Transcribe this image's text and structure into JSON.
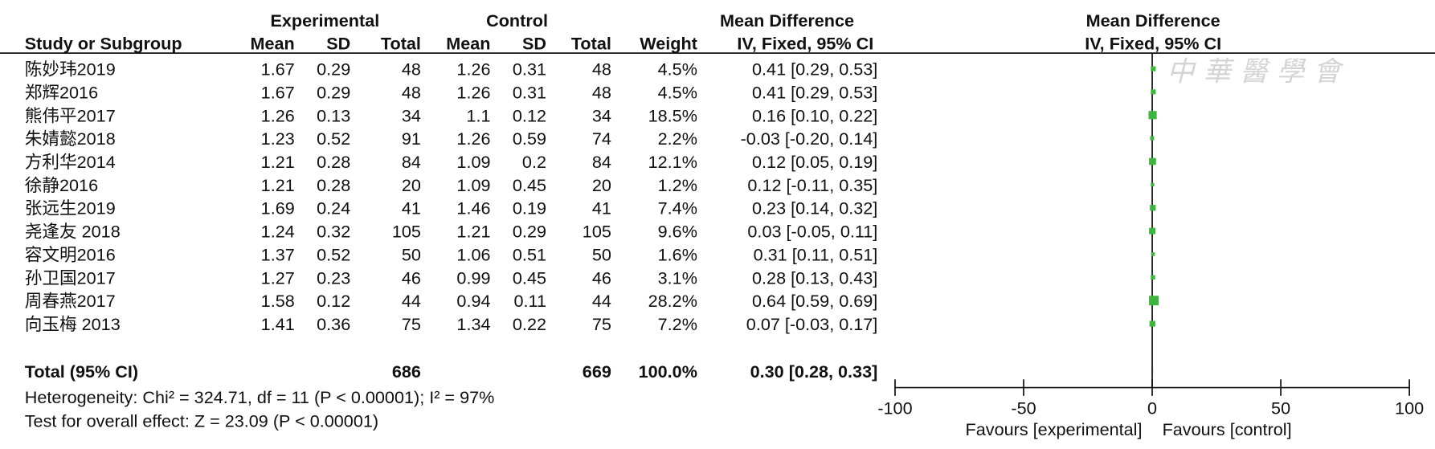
{
  "chart_data": {
    "type": "forest",
    "group_headers": [
      "Experimental",
      "Control",
      "Mean Difference",
      "Mean Difference"
    ],
    "columns": [
      "Study or Subgroup",
      "Mean",
      "SD",
      "Total",
      "Mean",
      "SD",
      "Total",
      "Weight",
      "IV, Fixed, 95% CI",
      "IV, Fixed, 95% CI"
    ],
    "studies": [
      {
        "name": "陈妙玮2019",
        "exp": [
          1.67,
          0.29,
          48
        ],
        "ctl": [
          1.26,
          0.31,
          48
        ],
        "weight": 4.5,
        "weight_label": "4.5%",
        "md": 0.41,
        "ci": [
          0.29,
          0.53
        ],
        "md_label": "0.41 [0.29, 0.53]"
      },
      {
        "name": "郑辉2016",
        "exp": [
          1.67,
          0.29,
          48
        ],
        "ctl": [
          1.26,
          0.31,
          48
        ],
        "weight": 4.5,
        "weight_label": "4.5%",
        "md": 0.41,
        "ci": [
          0.29,
          0.53
        ],
        "md_label": "0.41 [0.29, 0.53]"
      },
      {
        "name": "熊伟平2017",
        "exp": [
          1.26,
          0.13,
          34
        ],
        "ctl": [
          1.1,
          0.12,
          34
        ],
        "weight": 18.5,
        "weight_label": "18.5%",
        "md": 0.16,
        "ci": [
          0.1,
          0.22
        ],
        "md_label": "0.16 [0.10, 0.22]"
      },
      {
        "name": "朱婧懿2018",
        "exp": [
          1.23,
          0.52,
          91
        ],
        "ctl": [
          1.26,
          0.59,
          74
        ],
        "weight": 2.2,
        "weight_label": "2.2%",
        "md": -0.03,
        "ci": [
          -0.2,
          0.14
        ],
        "md_label": "-0.03 [-0.20, 0.14]"
      },
      {
        "name": "方利华2014",
        "exp": [
          1.21,
          0.28,
          84
        ],
        "ctl": [
          1.09,
          0.2,
          84
        ],
        "weight": 12.1,
        "weight_label": "12.1%",
        "md": 0.12,
        "ci": [
          0.05,
          0.19
        ],
        "md_label": "0.12 [0.05, 0.19]"
      },
      {
        "name": "徐静2016",
        "exp": [
          1.21,
          0.28,
          20
        ],
        "ctl": [
          1.09,
          0.45,
          20
        ],
        "weight": 1.2,
        "weight_label": "1.2%",
        "md": 0.12,
        "ci": [
          -0.11,
          0.35
        ],
        "md_label": "0.12 [-0.11, 0.35]"
      },
      {
        "name": "张远生2019",
        "exp": [
          1.69,
          0.24,
          41
        ],
        "ctl": [
          1.46,
          0.19,
          41
        ],
        "weight": 7.4,
        "weight_label": "7.4%",
        "md": 0.23,
        "ci": [
          0.14,
          0.32
        ],
        "md_label": "0.23 [0.14, 0.32]"
      },
      {
        "name": "尧逢友 2018",
        "exp": [
          1.24,
          0.32,
          105
        ],
        "ctl": [
          1.21,
          0.29,
          105
        ],
        "weight": 9.6,
        "weight_label": "9.6%",
        "md": 0.03,
        "ci": [
          -0.05,
          0.11
        ],
        "md_label": "0.03 [-0.05, 0.11]"
      },
      {
        "name": "容文明2016",
        "exp": [
          1.37,
          0.52,
          50
        ],
        "ctl": [
          1.06,
          0.51,
          50
        ],
        "weight": 1.6,
        "weight_label": "1.6%",
        "md": 0.31,
        "ci": [
          0.11,
          0.51
        ],
        "md_label": "0.31 [0.11, 0.51]"
      },
      {
        "name": "孙卫国2017",
        "exp": [
          1.27,
          0.23,
          46
        ],
        "ctl": [
          0.99,
          0.45,
          46
        ],
        "weight": 3.1,
        "weight_label": "3.1%",
        "md": 0.28,
        "ci": [
          0.13,
          0.43
        ],
        "md_label": "0.28 [0.13, 0.43]"
      },
      {
        "name": "周春燕2017",
        "exp": [
          1.58,
          0.12,
          44
        ],
        "ctl": [
          0.94,
          0.11,
          44
        ],
        "weight": 28.2,
        "weight_label": "28.2%",
        "md": 0.64,
        "ci": [
          0.59,
          0.69
        ],
        "md_label": "0.64 [0.59, 0.69]"
      },
      {
        "name": "向玉梅 2013",
        "exp": [
          1.41,
          0.36,
          75
        ],
        "ctl": [
          1.34,
          0.22,
          75
        ],
        "weight": 7.2,
        "weight_label": "7.2%",
        "md": 0.07,
        "ci": [
          -0.03,
          0.17
        ],
        "md_label": "0.07 [-0.03, 0.17]"
      }
    ],
    "total": {
      "name": "Total (95% CI)",
      "exp_total": 686,
      "ctl_total": 669,
      "weight": 100,
      "weight_label": "100.0%",
      "md": 0.3,
      "ci": [
        0.28,
        0.33
      ],
      "md_label": "0.30 [0.28, 0.33]"
    },
    "heterogeneity": "Heterogeneity: Chi² = 324.71, df = 11 (P < 0.00001); I² = 97%",
    "overall_effect": "Test for overall effect: Z = 23.09 (P < 0.00001)",
    "xlim": [
      -100,
      100
    ],
    "xticks": [
      -100,
      -50,
      0,
      50,
      100
    ],
    "favours": [
      "Favours [experimental]",
      "Favours [control]"
    ],
    "color": "#3cb63c",
    "watermark": "中華醫學會"
  }
}
